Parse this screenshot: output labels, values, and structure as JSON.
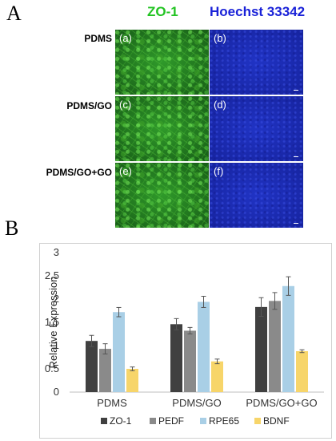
{
  "panel_a_letter": "A",
  "panel_b_letter": "B",
  "stain_titles": {
    "green": "ZO-1",
    "blue": "Hoechst 33342"
  },
  "rows": [
    {
      "label": "PDMS",
      "green_tag": "(a)",
      "blue_tag": "(b)"
    },
    {
      "label": "PDMS/GO",
      "green_tag": "(c)",
      "blue_tag": "(d)"
    },
    {
      "label": "PDMS/GO+GO",
      "green_tag": "(e)",
      "blue_tag": "(f)"
    }
  ],
  "colors": {
    "zo1_green": "#22c322",
    "hoechst_blue": "#1a22d8"
  },
  "chart_data": {
    "type": "bar",
    "categories": [
      "PDMS",
      "PDMS/GO",
      "PDMS/GO+GO"
    ],
    "series": [
      {
        "name": "ZO-1",
        "color": "#404040",
        "values": [
          1.1,
          1.46,
          1.83
        ],
        "errors": [
          0.12,
          0.12,
          0.2
        ]
      },
      {
        "name": "PEDF",
        "color": "#8a8a8a",
        "values": [
          0.93,
          1.32,
          1.96
        ],
        "errors": [
          0.11,
          0.07,
          0.18
        ]
      },
      {
        "name": "RPE65",
        "color": "#a9cfe6",
        "values": [
          1.72,
          1.94,
          2.28
        ],
        "errors": [
          0.1,
          0.12,
          0.2
        ]
      },
      {
        "name": "BDNF",
        "color": "#f7d56a",
        "values": [
          0.5,
          0.66,
          0.88
        ],
        "errors": [
          0.04,
          0.05,
          0.03
        ]
      }
    ],
    "xlabel": "",
    "ylabel": "Relative Expression",
    "ylim": [
      0,
      3
    ],
    "yticks": [
      "0",
      "0.5",
      "1",
      "1.5",
      "2",
      "2.5",
      "3"
    ],
    "grid": false,
    "legend_position": "bottom"
  }
}
